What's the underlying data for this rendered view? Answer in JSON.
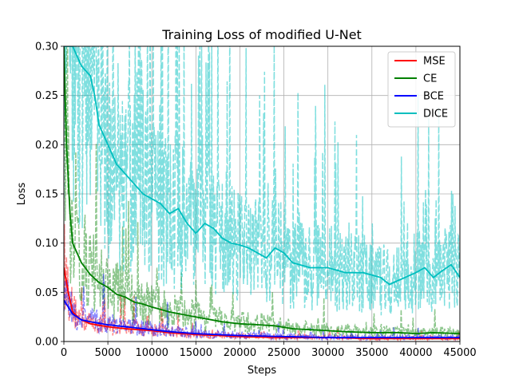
{
  "chart_data": {
    "type": "line",
    "title": "Training Loss of modified U-Net",
    "xlabel": "Steps",
    "ylabel": "Loss",
    "xlim": [
      0,
      45000
    ],
    "ylim": [
      0,
      0.3
    ],
    "x_ticks": [
      0,
      5000,
      10000,
      15000,
      20000,
      25000,
      30000,
      35000,
      40000,
      45000
    ],
    "y_ticks": [
      "0.00",
      "0.05",
      "0.10",
      "0.15",
      "0.20",
      "0.25",
      "0.30"
    ],
    "grid": true,
    "legend_position": "top-right",
    "series": [
      {
        "name": "MSE",
        "color": "#ff0000",
        "x": [
          0,
          500,
          1000,
          2000,
          3000,
          5000,
          7000,
          10000,
          12000,
          15000,
          18000,
          20000,
          25000,
          30000,
          35000,
          40000,
          45000
        ],
        "values": [
          0.075,
          0.05,
          0.03,
          0.022,
          0.018,
          0.015,
          0.013,
          0.011,
          0.009,
          0.007,
          0.006,
          0.005,
          0.004,
          0.004,
          0.003,
          0.003,
          0.003
        ]
      },
      {
        "name": "CE",
        "color": "#008000",
        "x": [
          0,
          300,
          700,
          1000,
          1500,
          2000,
          3000,
          4000,
          5000,
          6000,
          7000,
          8000,
          9000,
          10000,
          12000,
          15000,
          18000,
          20000,
          22000,
          24000,
          26000,
          28000,
          30000,
          32000,
          35000,
          38000,
          40000,
          42000,
          45000
        ],
        "values": [
          0.3,
          0.2,
          0.13,
          0.1,
          0.09,
          0.08,
          0.068,
          0.06,
          0.055,
          0.048,
          0.045,
          0.04,
          0.038,
          0.035,
          0.03,
          0.025,
          0.02,
          0.018,
          0.017,
          0.016,
          0.013,
          0.012,
          0.011,
          0.01,
          0.009,
          0.009,
          0.008,
          0.009,
          0.008
        ]
      },
      {
        "name": "BCE",
        "color": "#0000ff",
        "x": [
          0,
          500,
          1000,
          2000,
          3000,
          5000,
          7000,
          10000,
          12000,
          15000,
          20000,
          25000,
          30000,
          35000,
          40000,
          45000
        ],
        "values": [
          0.042,
          0.035,
          0.028,
          0.022,
          0.02,
          0.017,
          0.015,
          0.012,
          0.01,
          0.008,
          0.006,
          0.005,
          0.004,
          0.004,
          0.004,
          0.004
        ]
      },
      {
        "name": "DICE",
        "color": "#00bfbf",
        "x": [
          0,
          1000,
          2000,
          3000,
          3500,
          4000,
          5000,
          6000,
          7000,
          8000,
          9000,
          10000,
          11000,
          12000,
          13000,
          14000,
          15000,
          16000,
          17000,
          18000,
          19000,
          20000,
          21000,
          22000,
          23000,
          24000,
          25000,
          26000,
          28000,
          30000,
          32000,
          34000,
          36000,
          37000,
          38000,
          40000,
          41000,
          42000,
          43000,
          44000,
          45000
        ],
        "values": [
          0.3,
          0.3,
          0.28,
          0.27,
          0.25,
          0.22,
          0.2,
          0.18,
          0.17,
          0.16,
          0.15,
          0.145,
          0.14,
          0.13,
          0.135,
          0.12,
          0.11,
          0.12,
          0.115,
          0.105,
          0.1,
          0.098,
          0.095,
          0.09,
          0.085,
          0.095,
          0.09,
          0.08,
          0.075,
          0.075,
          0.07,
          0.07,
          0.065,
          0.058,
          0.062,
          0.07,
          0.075,
          0.065,
          0.072,
          0.078,
          0.065
        ]
      }
    ],
    "raw_band_alpha": 0.5
  }
}
